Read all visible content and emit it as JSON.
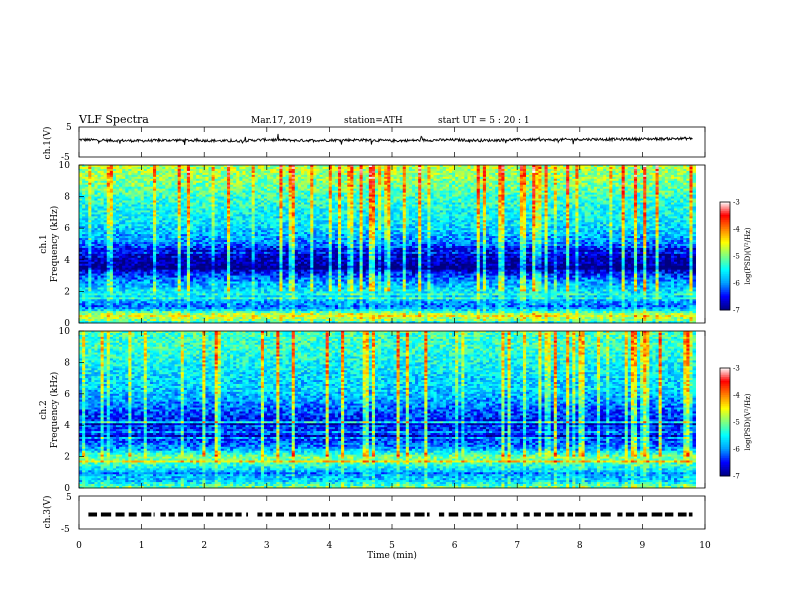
{
  "header": {
    "title": "VLF  Spectra",
    "date": "Mar.17, 2019",
    "station": "station=ATH",
    "start": "start  UT  =    5  : 20 : 1"
  },
  "colors": {
    "jet": [
      "#000080",
      "#0000ff",
      "#00a0ff",
      "#00ffff",
      "#80ff80",
      "#ffff00",
      "#ff8000",
      "#ff0000",
      "#ffffff"
    ]
  },
  "chart_data": [
    {
      "type": "line",
      "panel": "ch1-waveform",
      "ylabel": "ch.1(V)",
      "ylim": [
        -5,
        5
      ],
      "yticks": [
        "5",
        "-5"
      ],
      "xlim": [
        0,
        10
      ],
      "x": [
        0,
        0.5,
        1,
        1.5,
        2,
        2.5,
        3,
        3.5,
        4,
        4.5,
        5,
        5.5,
        6,
        6.5,
        7,
        7.5,
        8,
        8.5,
        9,
        9.5,
        9.8
      ],
      "y": [
        0.8,
        0.5,
        0.4,
        0.6,
        0.5,
        0.3,
        0.8,
        0.5,
        0.6,
        0.7,
        0.4,
        0.6,
        0.7,
        0.5,
        0.8,
        0.7,
        0.9,
        0.9,
        1.0,
        1.1,
        1.2
      ]
    },
    {
      "type": "heatmap",
      "panel": "ch1-spectrogram",
      "ylabel": "ch.1\nFrequency (kHz)",
      "ylim": [
        0,
        10
      ],
      "yticks": [
        "0",
        "2",
        "4",
        "6",
        "8",
        "10"
      ],
      "xlim": [
        0,
        9.85
      ],
      "freq_profile_kHz": [
        0,
        0.5,
        1,
        1.5,
        2,
        2.5,
        3,
        3.5,
        4,
        4.5,
        5,
        5.5,
        6,
        6.5,
        7,
        7.5,
        8,
        8.5,
        9,
        9.5,
        10
      ],
      "log_psd_profile": [
        -5.2,
        -4.6,
        -6.2,
        -5.8,
        -5.6,
        -5.9,
        -6.3,
        -6.9,
        -6.8,
        -6.7,
        -6.1,
        -5.9,
        -5.7,
        -5.6,
        -5.5,
        -5.4,
        -5.3,
        -5.1,
        -5.0,
        -4.9,
        -4.8
      ],
      "colorbar": {
        "label": "log(PSD)(V²/Hz)",
        "range": [
          -7,
          -3
        ],
        "ticks": [
          "-3",
          "-4",
          "-5",
          "-6",
          "-7"
        ]
      }
    },
    {
      "type": "heatmap",
      "panel": "ch2-spectrogram",
      "ylabel": "ch.2\nFrequency (kHz)",
      "ylim": [
        0,
        10
      ],
      "yticks": [
        "0",
        "2",
        "4",
        "6",
        "8",
        "10"
      ],
      "xlim": [
        0,
        9.85
      ],
      "freq_profile_kHz": [
        0,
        0.5,
        1,
        1.5,
        2,
        2.5,
        3,
        3.5,
        4,
        4.5,
        5,
        5.5,
        6,
        6.5,
        7,
        7.5,
        8,
        8.5,
        9,
        9.5,
        10
      ],
      "log_psd_profile": [
        -5.0,
        -5.8,
        -5.9,
        -5.3,
        -5.0,
        -6.0,
        -6.3,
        -6.4,
        -6.5,
        -6.4,
        -6.2,
        -6.0,
        -5.8,
        -5.7,
        -5.7,
        -5.6,
        -5.5,
        -5.4,
        -5.3,
        -5.3,
        -5.2
      ],
      "colorbar": {
        "label": "log(PSD)(V²/Hz)",
        "range": [
          -7,
          -3
        ],
        "ticks": [
          "-3",
          "-4",
          "-5",
          "-6",
          "-7"
        ]
      }
    },
    {
      "type": "line",
      "panel": "ch3-waveform",
      "ylabel": "ch.3(V)",
      "ylim": [
        -5,
        5
      ],
      "yticks": [
        "5",
        "-5"
      ],
      "xlim": [
        0,
        10
      ],
      "baseline": 0,
      "segments": [
        [
          0.15,
          1.2
        ],
        [
          1.3,
          2.7
        ],
        [
          2.85,
          4.1
        ],
        [
          4.2,
          5.6
        ],
        [
          5.75,
          7.0
        ],
        [
          7.1,
          8.5
        ],
        [
          8.6,
          9.8
        ]
      ]
    }
  ],
  "xaxis": {
    "label": "Time  (min)",
    "ticks": [
      "0",
      "1",
      "2",
      "3",
      "4",
      "5",
      "6",
      "7",
      "8",
      "9",
      "10"
    ],
    "range": [
      0,
      10
    ]
  }
}
